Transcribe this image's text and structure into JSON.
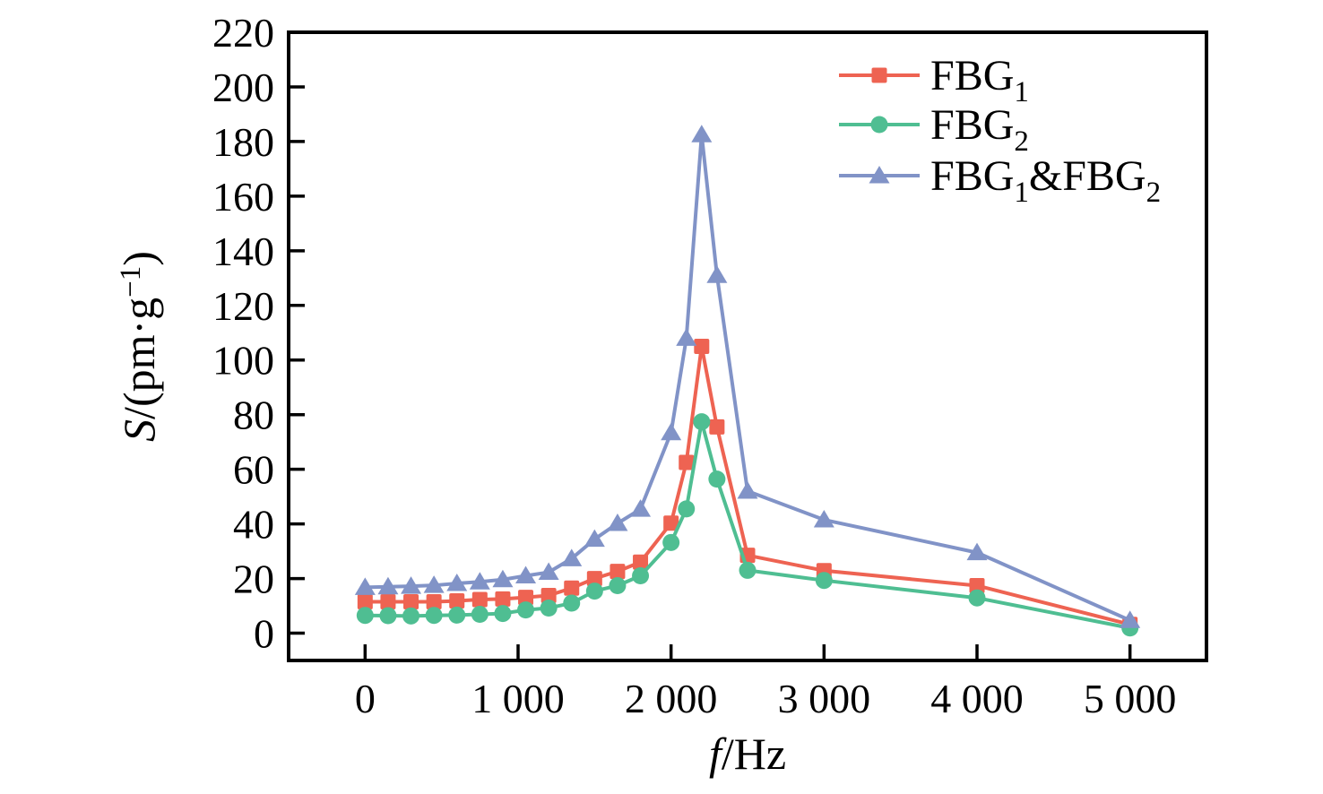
{
  "figure": {
    "background": "#ffffff",
    "frame_color": "#000000",
    "x_axis": {
      "title": "f/Hz",
      "title_parts": [
        {
          "t": "f",
          "italic": true
        },
        {
          "t": "/Hz"
        }
      ]
    },
    "y_axis": {
      "title": "S/(pm·g⁻¹)",
      "title_parts": [
        {
          "t": "S",
          "italic": true
        },
        {
          "t": "/(pm·g"
        },
        {
          "t": "−1",
          "sup": true
        },
        {
          "t": ")"
        }
      ]
    },
    "legend": {
      "items": [
        {
          "label": "FBG₁",
          "label_parts": [
            {
              "t": "FBG"
            },
            {
              "t": "1",
              "sub": true
            }
          ]
        },
        {
          "label": "FBG₂",
          "label_parts": [
            {
              "t": "FBG"
            },
            {
              "t": "2",
              "sub": true
            }
          ]
        },
        {
          "label": "FBG₁&FBG₂",
          "label_parts": [
            {
              "t": "FBG"
            },
            {
              "t": "1",
              "sub": true
            },
            {
              "t": "&"
            },
            {
              "t": "FBG"
            },
            {
              "t": "2",
              "sub": true
            }
          ]
        }
      ]
    }
  },
  "chart_data": {
    "type": "line",
    "title": "",
    "xlabel": "f/Hz",
    "ylabel": "S/(pm·g⁻¹)",
    "xlim": [
      -500,
      5500
    ],
    "ylim": [
      -10,
      220
    ],
    "grid": false,
    "legend_position": "upper right",
    "x_ticks": [
      0,
      1000,
      2000,
      3000,
      4000,
      5000
    ],
    "x_tick_labels": [
      "0",
      "1 000",
      "2 000",
      "3 000",
      "4 000",
      "5 000"
    ],
    "y_ticks": [
      0,
      20,
      40,
      60,
      80,
      100,
      120,
      140,
      160,
      180,
      200,
      220
    ],
    "y_tick_labels": [
      "0",
      "20",
      "40",
      "60",
      "80",
      "100",
      "120",
      "140",
      "160",
      "180",
      "200",
      "220"
    ],
    "x": [
      0,
      150,
      300,
      450,
      600,
      750,
      900,
      1050,
      1200,
      1350,
      1500,
      1650,
      1800,
      2000,
      2100,
      2200,
      2300,
      2500,
      3000,
      4000,
      5000
    ],
    "series": [
      {
        "name": "FBG1",
        "color": "#EE6352",
        "marker": "square",
        "values": [
          11.5,
          11.5,
          11.5,
          11.5,
          11.8,
          12.3,
          12.5,
          13.1,
          13.8,
          16.5,
          20.0,
          22.6,
          26.0,
          40.3,
          62.5,
          105.0,
          75.5,
          28.5,
          22.9,
          17.4,
          3.2
        ]
      },
      {
        "name": "FBG2",
        "color": "#4FBE92",
        "marker": "circle",
        "values": [
          6.5,
          6.4,
          6.3,
          6.5,
          6.6,
          6.9,
          7.2,
          8.5,
          9.2,
          11.0,
          15.4,
          17.4,
          21.0,
          33.2,
          45.5,
          77.4,
          56.4,
          23.0,
          19.3,
          12.9,
          1.9
        ]
      },
      {
        "name": "FBG1_and_FBG2",
        "color": "#8193C7",
        "marker": "triangle",
        "values": [
          16.8,
          17.0,
          17.2,
          17.5,
          18.2,
          18.8,
          19.6,
          21.0,
          22.3,
          27.3,
          34.4,
          40.2,
          45.4,
          73.4,
          108.0,
          182.5,
          131.0,
          52.0,
          41.5,
          29.5,
          4.7
        ]
      }
    ]
  }
}
